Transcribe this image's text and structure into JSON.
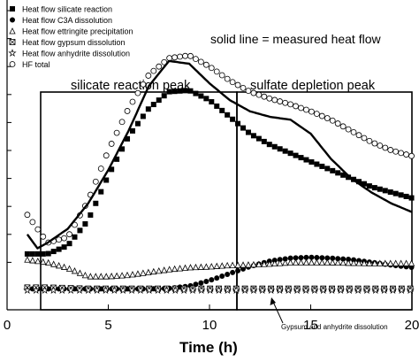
{
  "chart_data": {
    "type": "scatter",
    "title": "",
    "xlabel": "Time (h)",
    "ylabel": "",
    "xlim": [
      0,
      20
    ],
    "ylim": [
      0,
      1.0
    ],
    "x_ticks": [
      0,
      5,
      10,
      15,
      20
    ],
    "y_ticks": [
      0.1,
      0.2,
      0.3,
      0.4,
      0.5,
      0.6,
      0.7,
      0.8,
      0.9,
      1.0
    ],
    "grid": false,
    "legend_position": "top-left",
    "note": "solid line = measured heat flow",
    "box_labels": [
      "silicate reaction peak",
      "sulfate depletion peak"
    ],
    "annotation": "Gypsum and anhydrite dissolution",
    "series": [
      {
        "name": "Heat flow silicate reaction",
        "marker": "filled-square",
        "x": [
          1.0,
          2.0,
          3.0,
          4.0,
          5.0,
          6.0,
          7.0,
          8.0,
          9.0,
          10.0,
          11.0,
          12.0,
          13.0,
          14.0,
          15.0,
          16.0,
          17.0,
          18.0,
          19.0,
          20.0
        ],
        "y": [
          0.13,
          0.13,
          0.16,
          0.25,
          0.41,
          0.55,
          0.65,
          0.71,
          0.715,
          0.68,
          0.62,
          0.56,
          0.52,
          0.49,
          0.46,
          0.43,
          0.4,
          0.37,
          0.35,
          0.33
        ]
      },
      {
        "name": "Heat flow C3A dissolution",
        "marker": "filled-circle",
        "x": [
          1.0,
          3.0,
          5.0,
          7.0,
          8.0,
          9.0,
          10.0,
          11.0,
          12.0,
          13.0,
          14.0,
          15.0,
          16.0,
          17.0,
          18.0,
          19.0,
          20.0
        ],
        "y": [
          0.005,
          0.005,
          0.005,
          0.005,
          0.007,
          0.015,
          0.035,
          0.06,
          0.085,
          0.105,
          0.115,
          0.118,
          0.115,
          0.11,
          0.1,
          0.09,
          0.082
        ]
      },
      {
        "name": "Heat flow ettringite precipitation",
        "marker": "open-triangle",
        "x": [
          1.0,
          2.0,
          3.0,
          4.0,
          5.0,
          6.0,
          7.0,
          8.0,
          9.0,
          10.0,
          11.0,
          12.0,
          13.0,
          14.0,
          15.0,
          16.0,
          17.0,
          18.0,
          19.0,
          20.0
        ],
        "y": [
          0.11,
          0.1,
          0.08,
          0.05,
          0.05,
          0.055,
          0.065,
          0.075,
          0.082,
          0.085,
          0.09,
          0.092,
          0.095,
          0.1,
          0.1,
          0.1,
          0.098,
          0.097,
          0.097,
          0.097
        ]
      },
      {
        "name": "Heat flow gypsum dissolution",
        "marker": "crossed-square",
        "x": [
          1.0,
          2.0,
          3.0,
          4.0,
          5.0,
          6.0,
          7.0,
          8.0,
          9.0,
          10.0,
          11.0,
          12.0,
          13.0,
          14.0,
          15.0,
          16.0,
          17.0,
          18.0,
          19.0,
          20.0
        ],
        "y": [
          0.01,
          0.01,
          0.008,
          0.006,
          0.006,
          0.006,
          0.006,
          0.006,
          0.006,
          0.006,
          0.006,
          0.006,
          0.006,
          0.006,
          0.006,
          0.006,
          0.006,
          0.006,
          0.006,
          0.006
        ]
      },
      {
        "name": "Heat flow anhydrite dissolution",
        "marker": "open-star",
        "x": [
          1.0,
          2.0,
          3.0,
          4.0,
          5.0,
          6.0,
          7.0,
          8.0,
          9.0,
          10.0,
          11.0,
          12.0,
          13.0,
          14.0,
          15.0,
          16.0,
          17.0,
          18.0,
          19.0,
          20.0
        ],
        "y": [
          0.0,
          0.0,
          0.0,
          0.0,
          0.0,
          0.0,
          0.0,
          0.0,
          0.0,
          0.0,
          0.0,
          0.0,
          0.0,
          0.0,
          0.0,
          0.0,
          0.0,
          0.0,
          0.0,
          0.0
        ]
      },
      {
        "name": "HF total",
        "marker": "open-circle",
        "x": [
          1.0,
          2.0,
          3.0,
          4.0,
          5.0,
          6.0,
          7.0,
          8.0,
          9.0,
          10.0,
          11.0,
          12.0,
          13.0,
          14.0,
          15.0,
          16.0,
          17.0,
          18.0,
          19.0,
          20.0
        ],
        "y": [
          0.27,
          0.17,
          0.19,
          0.32,
          0.5,
          0.65,
          0.77,
          0.83,
          0.84,
          0.8,
          0.75,
          0.71,
          0.685,
          0.665,
          0.64,
          0.61,
          0.57,
          0.53,
          0.5,
          0.48
        ]
      },
      {
        "name": "measured heat flow",
        "marker": "solid-line",
        "x": [
          1.0,
          1.5,
          2.0,
          3.0,
          4.0,
          5.0,
          6.0,
          7.0,
          8.0,
          9.0,
          10.0,
          11.0,
          12.0,
          13.0,
          14.0,
          15.0,
          16.0,
          17.0,
          18.0,
          19.0,
          20.0
        ],
        "y": [
          0.2,
          0.15,
          0.17,
          0.22,
          0.31,
          0.43,
          0.57,
          0.73,
          0.82,
          0.81,
          0.74,
          0.68,
          0.64,
          0.62,
          0.61,
          0.56,
          0.47,
          0.4,
          0.35,
          0.31,
          0.28
        ]
      }
    ]
  }
}
